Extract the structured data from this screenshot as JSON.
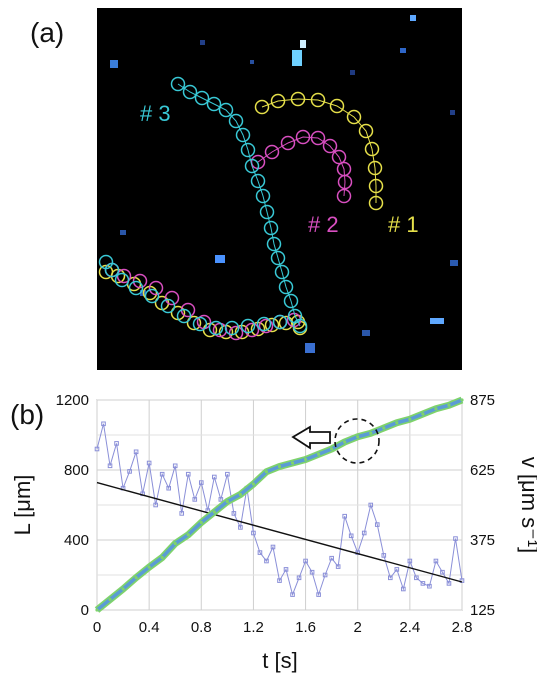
{
  "panel_a": {
    "label": "(a)",
    "tracks": [
      {
        "name": "# 1",
        "color": "#e6e04a",
        "points": [
          [
            262,
            107
          ],
          [
            278,
            101
          ],
          [
            298,
            99
          ],
          [
            318,
            100
          ],
          [
            337,
            106
          ],
          [
            354,
            117
          ],
          [
            366,
            131
          ],
          [
            372,
            149
          ],
          [
            375,
            168
          ],
          [
            376,
            186
          ],
          [
            376,
            203
          ]
        ],
        "tail": [
          [
            106,
            272
          ],
          [
            118,
            276
          ],
          [
            134,
            284
          ],
          [
            150,
            293
          ],
          [
            162,
            303
          ],
          [
            178,
            313
          ],
          [
            194,
            323
          ],
          [
            210,
            330
          ],
          [
            226,
            332
          ],
          [
            242,
            332
          ],
          [
            258,
            329
          ],
          [
            272,
            325
          ],
          [
            286,
            323
          ],
          [
            298,
            322
          ],
          [
            300,
            328
          ]
        ]
      },
      {
        "name": "# 2",
        "color": "#d94fc1",
        "points": [
          [
            258,
            162
          ],
          [
            272,
            152
          ],
          [
            288,
            143
          ],
          [
            303,
            137
          ],
          [
            318,
            138
          ],
          [
            330,
            146
          ],
          [
            339,
            157
          ],
          [
            344,
            169
          ],
          [
            345,
            182
          ],
          [
            344,
            196
          ]
        ],
        "tail": [
          [
            112,
            270
          ],
          [
            124,
            276
          ],
          [
            140,
            281
          ],
          [
            156,
            288
          ],
          [
            172,
            298
          ],
          [
            188,
            310
          ],
          [
            204,
            322
          ],
          [
            220,
            330
          ],
          [
            236,
            333
          ],
          [
            252,
            330
          ],
          [
            266,
            326
          ],
          [
            280,
            322
          ],
          [
            294,
            320
          ]
        ]
      },
      {
        "name": "# 3",
        "color": "#39c9d6",
        "points": [
          [
            178,
            84
          ],
          [
            190,
            92
          ],
          [
            202,
            98
          ],
          [
            214,
            104
          ],
          [
            226,
            110
          ],
          [
            236,
            121
          ],
          [
            243,
            135
          ],
          [
            248,
            150
          ],
          [
            252,
            166
          ],
          [
            258,
            181
          ],
          [
            263,
            196
          ],
          [
            267,
            212
          ],
          [
            271,
            228
          ],
          [
            274,
            244
          ],
          [
            278,
            258
          ],
          [
            282,
            272
          ],
          [
            286,
            287
          ],
          [
            291,
            301
          ],
          [
            295,
            316
          ],
          [
            300,
            326
          ]
        ],
        "tail": [
          [
            106,
            262
          ],
          [
            112,
            270
          ],
          [
            122,
            280
          ],
          [
            136,
            288
          ],
          [
            152,
            296
          ],
          [
            168,
            306
          ],
          [
            184,
            316
          ],
          [
            200,
            324
          ],
          [
            216,
            328
          ],
          [
            232,
            328
          ],
          [
            248,
            326
          ],
          [
            264,
            324
          ],
          [
            280,
            322
          ]
        ]
      }
    ]
  },
  "panel_b": {
    "label": "(b)"
  },
  "chart_data": {
    "type": "line",
    "xlabel": "t [s]",
    "ylabel": "L [μm]",
    "y2label": "v [μm s⁻¹]",
    "xlim": [
      0,
      2.8
    ],
    "ylim": [
      0,
      1200
    ],
    "y2lim": [
      125,
      875
    ],
    "x_ticks": [
      "0",
      "0.4",
      "0.8",
      "1.2",
      "1.6",
      "2",
      "2.4",
      "2.8"
    ],
    "y_ticks": [
      "0",
      "400",
      "800",
      "1200"
    ],
    "y2_ticks": [
      "125",
      "375",
      "625",
      "875"
    ],
    "grid": true,
    "arrow_note": "points to left axis",
    "series": [
      {
        "axis": "left",
        "color": "#5b9bd5",
        "edge_color": "#7fd36b",
        "x": [
          0,
          0.1,
          0.2,
          0.3,
          0.4,
          0.5,
          0.6,
          0.7,
          0.8,
          0.9,
          1.0,
          1.1,
          1.2,
          1.3,
          1.4,
          1.5,
          1.6,
          1.7,
          1.8,
          1.9,
          2.0,
          2.1,
          2.2,
          2.3,
          2.4,
          2.5,
          2.6,
          2.7,
          2.8
        ],
        "y": [
          0,
          60,
          120,
          185,
          245,
          300,
          380,
          430,
          500,
          560,
          620,
          660,
          720,
          790,
          820,
          840,
          860,
          890,
          920,
          960,
          990,
          1010,
          1040,
          1070,
          1090,
          1120,
          1150,
          1170,
          1200
        ]
      },
      {
        "axis": "right",
        "color": "#8a8fd8",
        "x": [
          0,
          0.05,
          0.1,
          0.15,
          0.2,
          0.25,
          0.3,
          0.35,
          0.4,
          0.45,
          0.5,
          0.55,
          0.6,
          0.65,
          0.7,
          0.75,
          0.8,
          0.85,
          0.9,
          0.95,
          1.0,
          1.05,
          1.1,
          1.15,
          1.2,
          1.25,
          1.3,
          1.35,
          1.4,
          1.45,
          1.5,
          1.55,
          1.6,
          1.65,
          1.7,
          1.75,
          1.8,
          1.85,
          1.9,
          1.95,
          2.0,
          2.05,
          2.1,
          2.15,
          2.2,
          2.25,
          2.3,
          2.35,
          2.4,
          2.45,
          2.5,
          2.55,
          2.6,
          2.65,
          2.7,
          2.75,
          2.8
        ],
        "y": [
          700,
          790,
          640,
          720,
          560,
          620,
          690,
          540,
          650,
          500,
          610,
          560,
          640,
          470,
          610,
          520,
          580,
          480,
          600,
          520,
          610,
          470,
          420,
          560,
          400,
          330,
          300,
          350,
          230,
          270,
          180,
          240,
          300,
          260,
          180,
          250,
          310,
          280,
          460,
          390,
          330,
          400,
          500,
          430,
          320,
          240,
          270,
          200,
          300,
          240,
          220,
          210,
          300,
          260,
          220,
          380,
          230
        ]
      },
      {
        "axis": "right",
        "color": "#111111",
        "fit": true,
        "x": [
          0,
          2.8
        ],
        "y": [
          580,
          225
        ]
      }
    ]
  }
}
